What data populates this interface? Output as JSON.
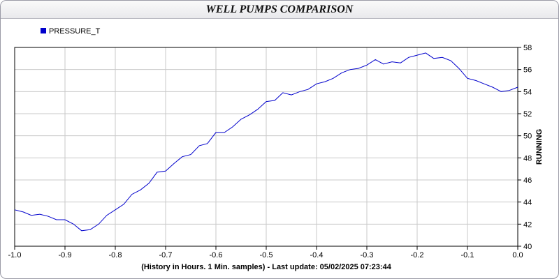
{
  "title": "WELL PUMPS COMPARISON",
  "chart_data": {
    "type": "line",
    "title": "WELL PUMPS COMPARISON",
    "xlabel": "(History in Hours. 1 Min. samples) - Last update: 05/02/2025 07:23:44",
    "ylabel": "RUNNING",
    "xlim": [
      -1.0,
      0.0
    ],
    "ylim": [
      40,
      58
    ],
    "x_ticks": [
      "-1.0",
      "-0.9",
      "-0.8",
      "-0.7",
      "-0.6",
      "-0.5",
      "-0.4",
      "-0.3",
      "-0.2",
      "-0.1",
      "0.0"
    ],
    "y_ticks": [
      "40",
      "42",
      "44",
      "46",
      "48",
      "50",
      "52",
      "54",
      "56",
      "58"
    ],
    "grid": true,
    "y_axis_side": "right",
    "legend_position": "top-left",
    "series": [
      {
        "name": "PRESSURE_T",
        "color": "#0000cc",
        "x": [
          -1.0,
          -0.983,
          -0.967,
          -0.95,
          -0.933,
          -0.917,
          -0.9,
          -0.883,
          -0.867,
          -0.85,
          -0.833,
          -0.817,
          -0.8,
          -0.783,
          -0.767,
          -0.75,
          -0.733,
          -0.717,
          -0.7,
          -0.683,
          -0.667,
          -0.65,
          -0.633,
          -0.617,
          -0.6,
          -0.583,
          -0.567,
          -0.55,
          -0.533,
          -0.517,
          -0.5,
          -0.483,
          -0.467,
          -0.45,
          -0.433,
          -0.417,
          -0.4,
          -0.383,
          -0.367,
          -0.35,
          -0.333,
          -0.317,
          -0.3,
          -0.283,
          -0.267,
          -0.25,
          -0.233,
          -0.217,
          -0.2,
          -0.183,
          -0.167,
          -0.15,
          -0.133,
          -0.117,
          -0.1,
          -0.083,
          -0.067,
          -0.05,
          -0.033,
          -0.017,
          0.0
        ],
        "y": [
          43.3,
          43.1,
          42.8,
          42.9,
          42.7,
          42.4,
          42.4,
          42.0,
          41.4,
          41.5,
          42.0,
          42.8,
          43.3,
          43.8,
          44.7,
          45.1,
          45.7,
          46.7,
          46.8,
          47.5,
          48.1,
          48.3,
          49.1,
          49.3,
          50.3,
          50.3,
          50.8,
          51.5,
          51.9,
          52.4,
          53.1,
          53.2,
          53.9,
          53.7,
          54.0,
          54.2,
          54.7,
          54.9,
          55.2,
          55.7,
          56.0,
          56.1,
          56.4,
          56.9,
          56.5,
          56.7,
          56.6,
          57.1,
          57.3,
          57.5,
          57.0,
          57.1,
          56.8,
          56.1,
          55.2,
          55.0,
          54.7,
          54.4,
          54.0,
          54.1,
          54.4
        ]
      }
    ]
  }
}
